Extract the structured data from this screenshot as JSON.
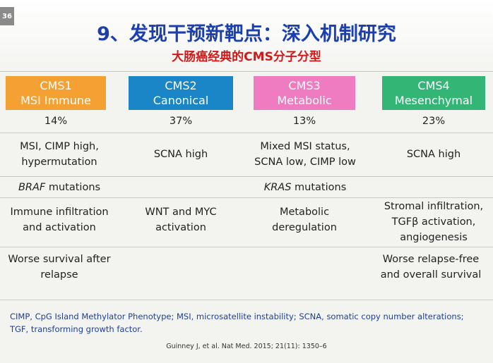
{
  "slide": {
    "number": "36",
    "title": "9、发现干预新靶点：深入机制研究",
    "subtitle": "大肠癌经典的CMS分子分型"
  },
  "subtypes": [
    {
      "id": "CMS1",
      "name": "MSI Immune",
      "color": "#f5a032",
      "percent": "14%"
    },
    {
      "id": "CMS2",
      "name": "Canonical",
      "color": "#1a86c8",
      "percent": "37%"
    },
    {
      "id": "CMS3",
      "name": "Metabolic",
      "color": "#ef7cc0",
      "percent": "13%"
    },
    {
      "id": "CMS4",
      "name": "Mesenchymal",
      "color": "#33b575",
      "percent": "23%"
    }
  ],
  "rows": {
    "genomic": [
      "MSI, CIMP high, hypermutation",
      "SCNA high",
      "Mixed MSI status, SCNA low, CIMP low",
      "SCNA high"
    ],
    "mutations": {
      "braf": "BRAF",
      "kras": "KRAS",
      "suffix": " mutations"
    },
    "biology": [
      "Immune infiltration and activation",
      "WNT and MYC activation",
      "Metabolic deregulation",
      "Stromal infiltration, TGFβ activation, angiogenesis"
    ],
    "prognosis": {
      "cms1": "Worse survival after relapse",
      "cms4": "Worse relapse-free and overall survival"
    }
  },
  "footnote": "CIMP, CpG Island Methylator Phenotype; MSI, microsatellite instability; SCNA, somatic copy number alterations; TGF, transforming growth factor.",
  "citation": "Guinney J, et al. Nat Med. 2015; 21(11): 1350–6"
}
